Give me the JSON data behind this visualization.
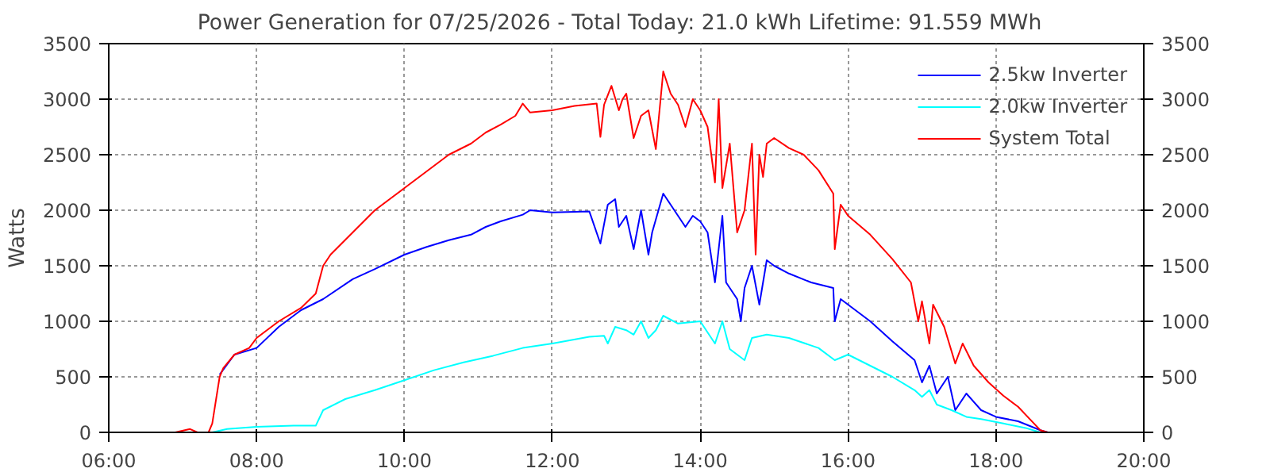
{
  "chart_data": {
    "type": "line",
    "title": "Power Generation for 07/25/2026 - Total Today: 21.0 kWh   Lifetime: 91.559 MWh",
    "ylabel": "Watts",
    "xlim": [
      6,
      20
    ],
    "xticks": [
      {
        "value": 6,
        "label": "06:00"
      },
      {
        "value": 8,
        "label": "08:00"
      },
      {
        "value": 10,
        "label": "10:00"
      },
      {
        "value": 12,
        "label": "12:00"
      },
      {
        "value": 14,
        "label": "14:00"
      },
      {
        "value": 16,
        "label": "16:00"
      },
      {
        "value": 18,
        "label": "18:00"
      },
      {
        "value": 20,
        "label": "20:00"
      }
    ],
    "ylim": [
      0,
      3500
    ],
    "yticks": [
      0,
      500,
      1000,
      1500,
      2000,
      2500,
      3000,
      3500
    ],
    "y2lim": [
      0,
      3500
    ],
    "y2ticks": [
      0,
      500,
      1000,
      1500,
      2000,
      2500,
      3000,
      3500
    ],
    "grid": true,
    "legend": "top right",
    "line_style": "solid",
    "marker": "none",
    "series": [
      {
        "name": "2.5kw Inverter",
        "color": "#0000ff",
        "x": [
          7.5,
          7.7,
          8.0,
          8.3,
          8.6,
          8.9,
          9.3,
          9.6,
          10.0,
          10.3,
          10.6,
          10.9,
          11.1,
          11.3,
          11.6,
          11.7,
          12.0,
          12.5,
          12.65,
          12.75,
          12.85,
          12.9,
          13.0,
          13.1,
          13.2,
          13.3,
          13.35,
          13.5,
          13.6,
          13.8,
          13.9,
          14.0,
          14.1,
          14.2,
          14.3,
          14.35,
          14.5,
          14.55,
          14.6,
          14.7,
          14.8,
          14.9,
          15.0,
          15.2,
          15.5,
          15.8,
          15.82,
          15.9,
          16.0,
          16.3,
          16.6,
          16.9,
          17.0,
          17.1,
          17.2,
          17.35,
          17.45,
          17.6,
          17.8,
          18.0,
          18.3,
          18.6,
          18.7
        ],
        "values": [
          520,
          700,
          760,
          950,
          1100,
          1200,
          1380,
          1470,
          1600,
          1670,
          1730,
          1780,
          1850,
          1900,
          1960,
          2000,
          1980,
          1990,
          1700,
          2050,
          2100,
          1850,
          1950,
          1650,
          2000,
          1600,
          1800,
          2150,
          2050,
          1850,
          1950,
          1900,
          1800,
          1350,
          1950,
          1350,
          1200,
          1000,
          1300,
          1500,
          1150,
          1550,
          1500,
          1430,
          1350,
          1300,
          1000,
          1200,
          1150,
          1000,
          820,
          650,
          450,
          600,
          350,
          500,
          200,
          350,
          200,
          140,
          100,
          20,
          0
        ]
      },
      {
        "name": "2.0kw Inverter",
        "color": "#00ffff",
        "x": [
          7.4,
          7.6,
          8.0,
          8.5,
          8.8,
          8.9,
          9.2,
          9.6,
          10.0,
          10.4,
          10.8,
          11.2,
          11.6,
          12.0,
          12.5,
          12.7,
          12.75,
          12.85,
          13.0,
          13.1,
          13.2,
          13.3,
          13.4,
          13.5,
          13.7,
          14.0,
          14.1,
          14.2,
          14.3,
          14.4,
          14.6,
          14.7,
          14.9,
          15.2,
          15.6,
          15.82,
          16.0,
          16.3,
          16.6,
          16.9,
          17.0,
          17.1,
          17.2,
          17.4,
          17.6,
          17.8,
          18.1,
          18.4,
          18.6
        ],
        "values": [
          0,
          30,
          50,
          60,
          60,
          200,
          300,
          380,
          470,
          560,
          630,
          690,
          760,
          800,
          860,
          870,
          800,
          950,
          920,
          880,
          1000,
          850,
          920,
          1050,
          980,
          1000,
          900,
          800,
          1000,
          750,
          650,
          850,
          880,
          850,
          760,
          650,
          700,
          600,
          500,
          380,
          320,
          380,
          250,
          200,
          140,
          120,
          80,
          40,
          0
        ]
      },
      {
        "name": "System Total",
        "color": "#ff0000",
        "x": [
          6.9,
          7.1,
          7.2,
          7.35,
          7.4,
          7.5,
          7.55,
          7.7,
          7.9,
          8.0,
          8.3,
          8.6,
          8.8,
          8.9,
          9.0,
          9.3,
          9.6,
          9.8,
          10.0,
          10.3,
          10.6,
          10.9,
          11.1,
          11.3,
          11.5,
          11.6,
          11.7,
          12.0,
          12.3,
          12.6,
          12.65,
          12.7,
          12.8,
          12.9,
          12.95,
          13.0,
          13.1,
          13.2,
          13.3,
          13.4,
          13.5,
          13.6,
          13.7,
          13.8,
          13.9,
          14.0,
          14.1,
          14.2,
          14.25,
          14.3,
          14.4,
          14.5,
          14.6,
          14.7,
          14.75,
          14.8,
          14.85,
          14.9,
          15.0,
          15.2,
          15.4,
          15.6,
          15.8,
          15.82,
          15.9,
          16.0,
          16.3,
          16.6,
          16.85,
          16.95,
          17.0,
          17.1,
          17.15,
          17.3,
          17.45,
          17.55,
          17.7,
          17.9,
          18.1,
          18.3,
          18.5,
          18.6,
          18.7,
          19.0
        ],
        "values": [
          0,
          30,
          0,
          0,
          80,
          500,
          580,
          700,
          760,
          850,
          1000,
          1120,
          1250,
          1500,
          1600,
          1800,
          2000,
          2100,
          2200,
          2350,
          2500,
          2600,
          2700,
          2770,
          2850,
          2960,
          2880,
          2900,
          2940,
          2960,
          2660,
          2950,
          3120,
          2900,
          3000,
          3050,
          2650,
          2850,
          2900,
          2550,
          3250,
          3050,
          2950,
          2750,
          3000,
          2900,
          2750,
          2250,
          3000,
          2200,
          2600,
          1800,
          2000,
          2600,
          1600,
          2500,
          2300,
          2600,
          2650,
          2560,
          2500,
          2360,
          2150,
          1650,
          2050,
          1950,
          1780,
          1560,
          1350,
          1000,
          1180,
          800,
          1150,
          950,
          620,
          800,
          600,
          450,
          330,
          230,
          90,
          20,
          0,
          0
        ]
      }
    ]
  }
}
